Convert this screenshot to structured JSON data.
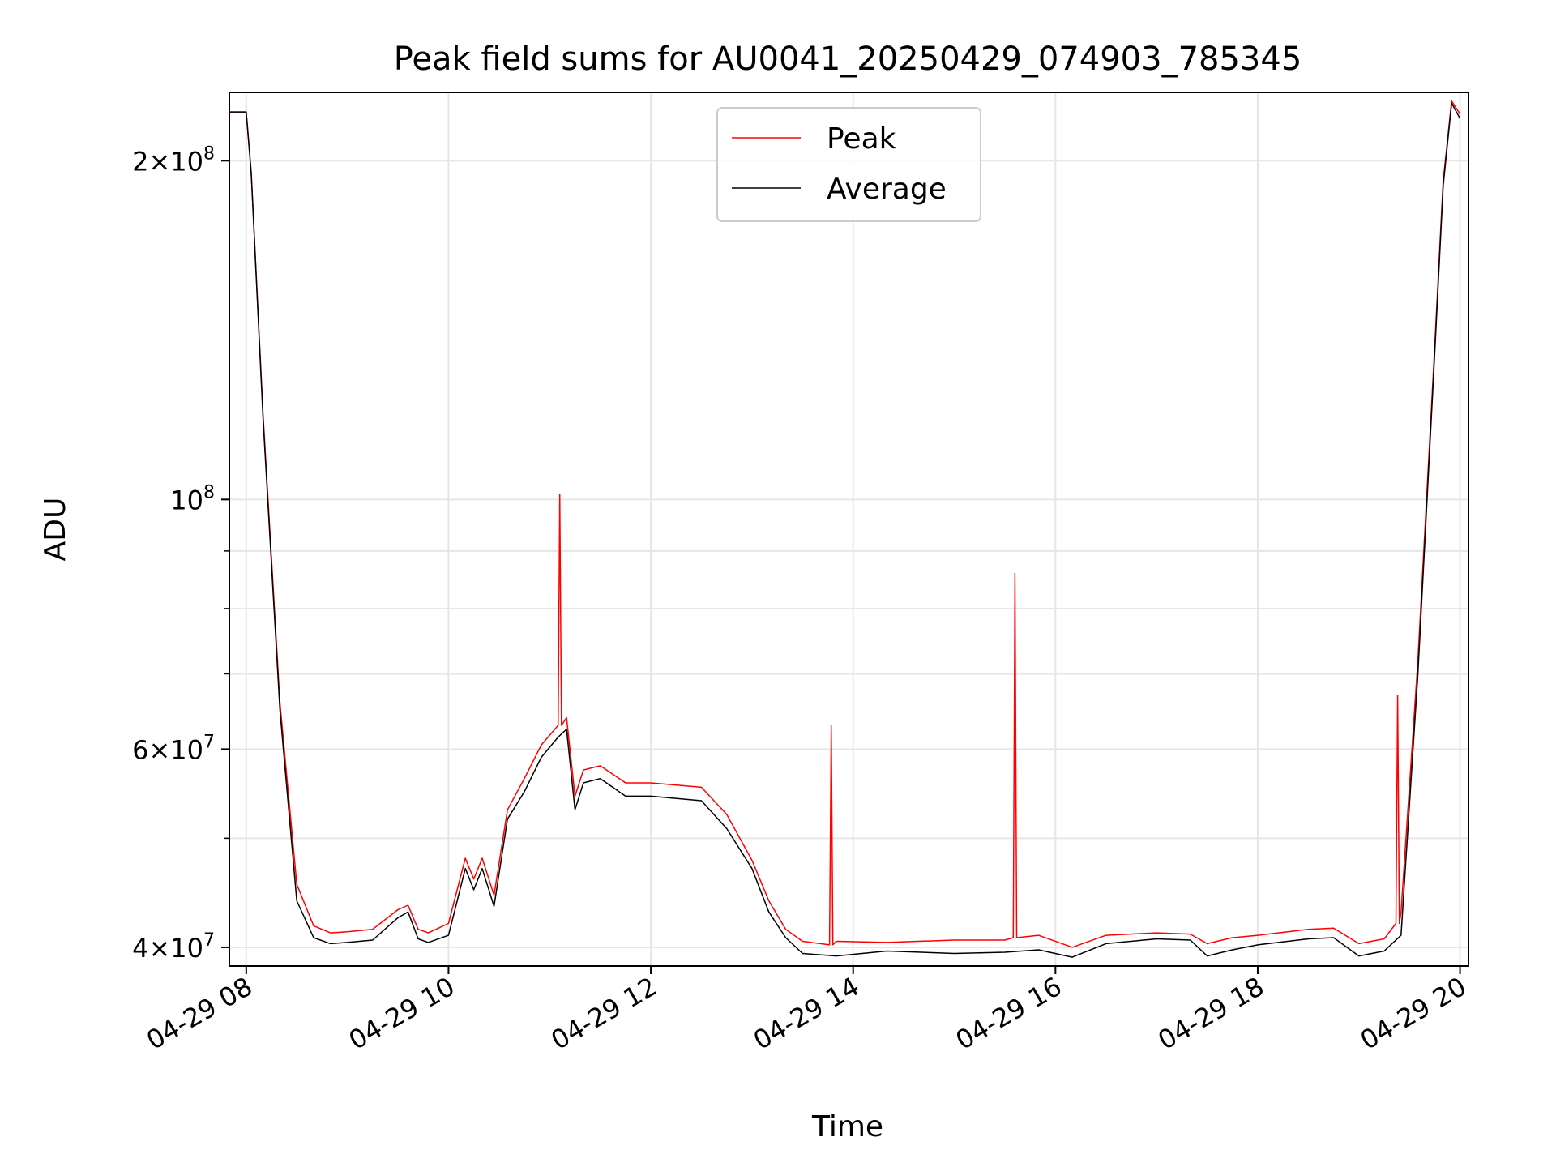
{
  "chart_data": {
    "type": "line",
    "title": "Peak field sums for AU0041_20250429_074903_785345",
    "xlabel": "Time",
    "ylabel": "ADU",
    "x_ticks": [
      "04-29 08",
      "04-29 10",
      "04-29 12",
      "04-29 14",
      "04-29 16",
      "04-29 18",
      "04-29 20"
    ],
    "y_ticks": [
      {
        "value": 40000000,
        "mantissa": "4",
        "exp": "7"
      },
      {
        "value": 60000000,
        "mantissa": "6",
        "exp": "7"
      },
      {
        "value": 100000000,
        "mantissa": "",
        "exp": "8"
      },
      {
        "value": 200000000,
        "mantissa": "2",
        "exp": "8"
      }
    ],
    "y_minor": [
      50000000,
      70000000,
      80000000,
      90000000
    ],
    "y_scale": "log",
    "xlim": [
      "2025-04-29T07:50",
      "2025-04-29T20:05"
    ],
    "ylim": [
      38500000,
      230000000
    ],
    "grid": true,
    "legend_position": "upper center",
    "colors": {
      "Peak": "#ff0000",
      "Average": "#000000"
    },
    "series": [
      {
        "name": "Average",
        "x": [
          "2025-04-29T07:50",
          "2025-04-29T08:00",
          "2025-04-29T08:03",
          "2025-04-29T08:10",
          "2025-04-29T08:20",
          "2025-04-29T08:30",
          "2025-04-29T08:40",
          "2025-04-29T08:50",
          "2025-04-29T09:00",
          "2025-04-29T09:15",
          "2025-04-29T09:30",
          "2025-04-29T09:36",
          "2025-04-29T09:42",
          "2025-04-29T09:48",
          "2025-04-29T10:00",
          "2025-04-29T10:10",
          "2025-04-29T10:15",
          "2025-04-29T10:20",
          "2025-04-29T10:27",
          "2025-04-29T10:35",
          "2025-04-29T10:45",
          "2025-04-29T10:55",
          "2025-04-29T11:05",
          "2025-04-29T11:10",
          "2025-04-29T11:15",
          "2025-04-29T11:20",
          "2025-04-29T11:30",
          "2025-04-29T11:45",
          "2025-04-29T12:00",
          "2025-04-29T12:30",
          "2025-04-29T12:45",
          "2025-04-29T13:00",
          "2025-04-29T13:10",
          "2025-04-29T13:20",
          "2025-04-29T13:30",
          "2025-04-29T13:50",
          "2025-04-29T14:20",
          "2025-04-29T15:00",
          "2025-04-29T15:30",
          "2025-04-29T15:50",
          "2025-04-29T16:10",
          "2025-04-29T16:30",
          "2025-04-29T17:00",
          "2025-04-29T17:20",
          "2025-04-29T17:30",
          "2025-04-29T17:45",
          "2025-04-29T18:00",
          "2025-04-29T18:30",
          "2025-04-29T18:45",
          "2025-04-29T19:00",
          "2025-04-29T19:15",
          "2025-04-29T19:25",
          "2025-04-29T19:35",
          "2025-04-29T19:45",
          "2025-04-29T19:50",
          "2025-04-29T19:55",
          "2025-04-29T20:00"
        ],
        "values": [
          221000000,
          221000000,
          195000000,
          118000000,
          65000000,
          44000000,
          40800000,
          40300000,
          40400000,
          40600000,
          42500000,
          43000000,
          40700000,
          40400000,
          41000000,
          47000000,
          45000000,
          47000000,
          43500000,
          52000000,
          55000000,
          59000000,
          61500000,
          62500000,
          53000000,
          56000000,
          56500000,
          54500000,
          54500000,
          54000000,
          51000000,
          47000000,
          43000000,
          40800000,
          39500000,
          39300000,
          39700000,
          39500000,
          39600000,
          39800000,
          39200000,
          40300000,
          40700000,
          40600000,
          39300000,
          39800000,
          40200000,
          40700000,
          40800000,
          39300000,
          39700000,
          41000000,
          70000000,
          135000000,
          190000000,
          225000000,
          218000000
        ]
      },
      {
        "name": "Peak",
        "x": [
          "2025-04-29T07:50",
          "2025-04-29T08:00",
          "2025-04-29T08:03",
          "2025-04-29T08:10",
          "2025-04-29T08:20",
          "2025-04-29T08:30",
          "2025-04-29T08:40",
          "2025-04-29T08:50",
          "2025-04-29T09:00",
          "2025-04-29T09:15",
          "2025-04-29T09:30",
          "2025-04-29T09:36",
          "2025-04-29T09:42",
          "2025-04-29T09:48",
          "2025-04-29T10:00",
          "2025-04-29T10:10",
          "2025-04-29T10:15",
          "2025-04-29T10:20",
          "2025-04-29T10:27",
          "2025-04-29T10:35",
          "2025-04-29T10:45",
          "2025-04-29T10:55",
          "2025-04-29T11:05",
          "2025-04-29T11:06",
          "2025-04-29T11:07",
          "2025-04-29T11:10",
          "2025-04-29T11:15",
          "2025-04-29T11:20",
          "2025-04-29T11:30",
          "2025-04-29T11:45",
          "2025-04-29T12:00",
          "2025-04-29T12:30",
          "2025-04-29T12:45",
          "2025-04-29T13:00",
          "2025-04-29T13:10",
          "2025-04-29T13:20",
          "2025-04-29T13:30",
          "2025-04-29T13:46",
          "2025-04-29T13:47",
          "2025-04-29T13:48",
          "2025-04-29T13:50",
          "2025-04-29T14:20",
          "2025-04-29T15:00",
          "2025-04-29T15:30",
          "2025-04-29T15:35",
          "2025-04-29T15:36",
          "2025-04-29T15:37",
          "2025-04-29T15:50",
          "2025-04-29T16:10",
          "2025-04-29T16:30",
          "2025-04-29T17:00",
          "2025-04-29T17:20",
          "2025-04-29T17:30",
          "2025-04-29T17:45",
          "2025-04-29T18:00",
          "2025-04-29T18:30",
          "2025-04-29T18:45",
          "2025-04-29T19:00",
          "2025-04-29T19:15",
          "2025-04-29T19:22",
          "2025-04-29T19:23",
          "2025-04-29T19:24",
          "2025-04-29T19:25",
          "2025-04-29T19:35",
          "2025-04-29T19:45",
          "2025-04-29T19:50",
          "2025-04-29T19:55",
          "2025-04-29T20:00"
        ],
        "values": [
          221000000,
          221000000,
          195000000,
          119000000,
          66000000,
          45500000,
          41800000,
          41200000,
          41300000,
          41500000,
          43200000,
          43600000,
          41500000,
          41200000,
          42000000,
          48000000,
          46000000,
          48000000,
          44500000,
          53000000,
          56500000,
          60500000,
          63000000,
          101000000,
          63000000,
          64000000,
          54500000,
          57500000,
          58000000,
          56000000,
          56000000,
          55500000,
          52500000,
          47800000,
          44000000,
          41500000,
          40500000,
          40200000,
          63000000,
          40200000,
          40500000,
          40400000,
          40600000,
          40600000,
          40800000,
          86000000,
          40800000,
          41000000,
          40000000,
          41000000,
          41200000,
          41100000,
          40300000,
          40800000,
          41000000,
          41500000,
          41600000,
          40300000,
          40700000,
          42000000,
          67000000,
          42000000,
          43000000,
          72000000,
          137000000,
          192000000,
          226000000,
          220000000
        ]
      }
    ]
  }
}
